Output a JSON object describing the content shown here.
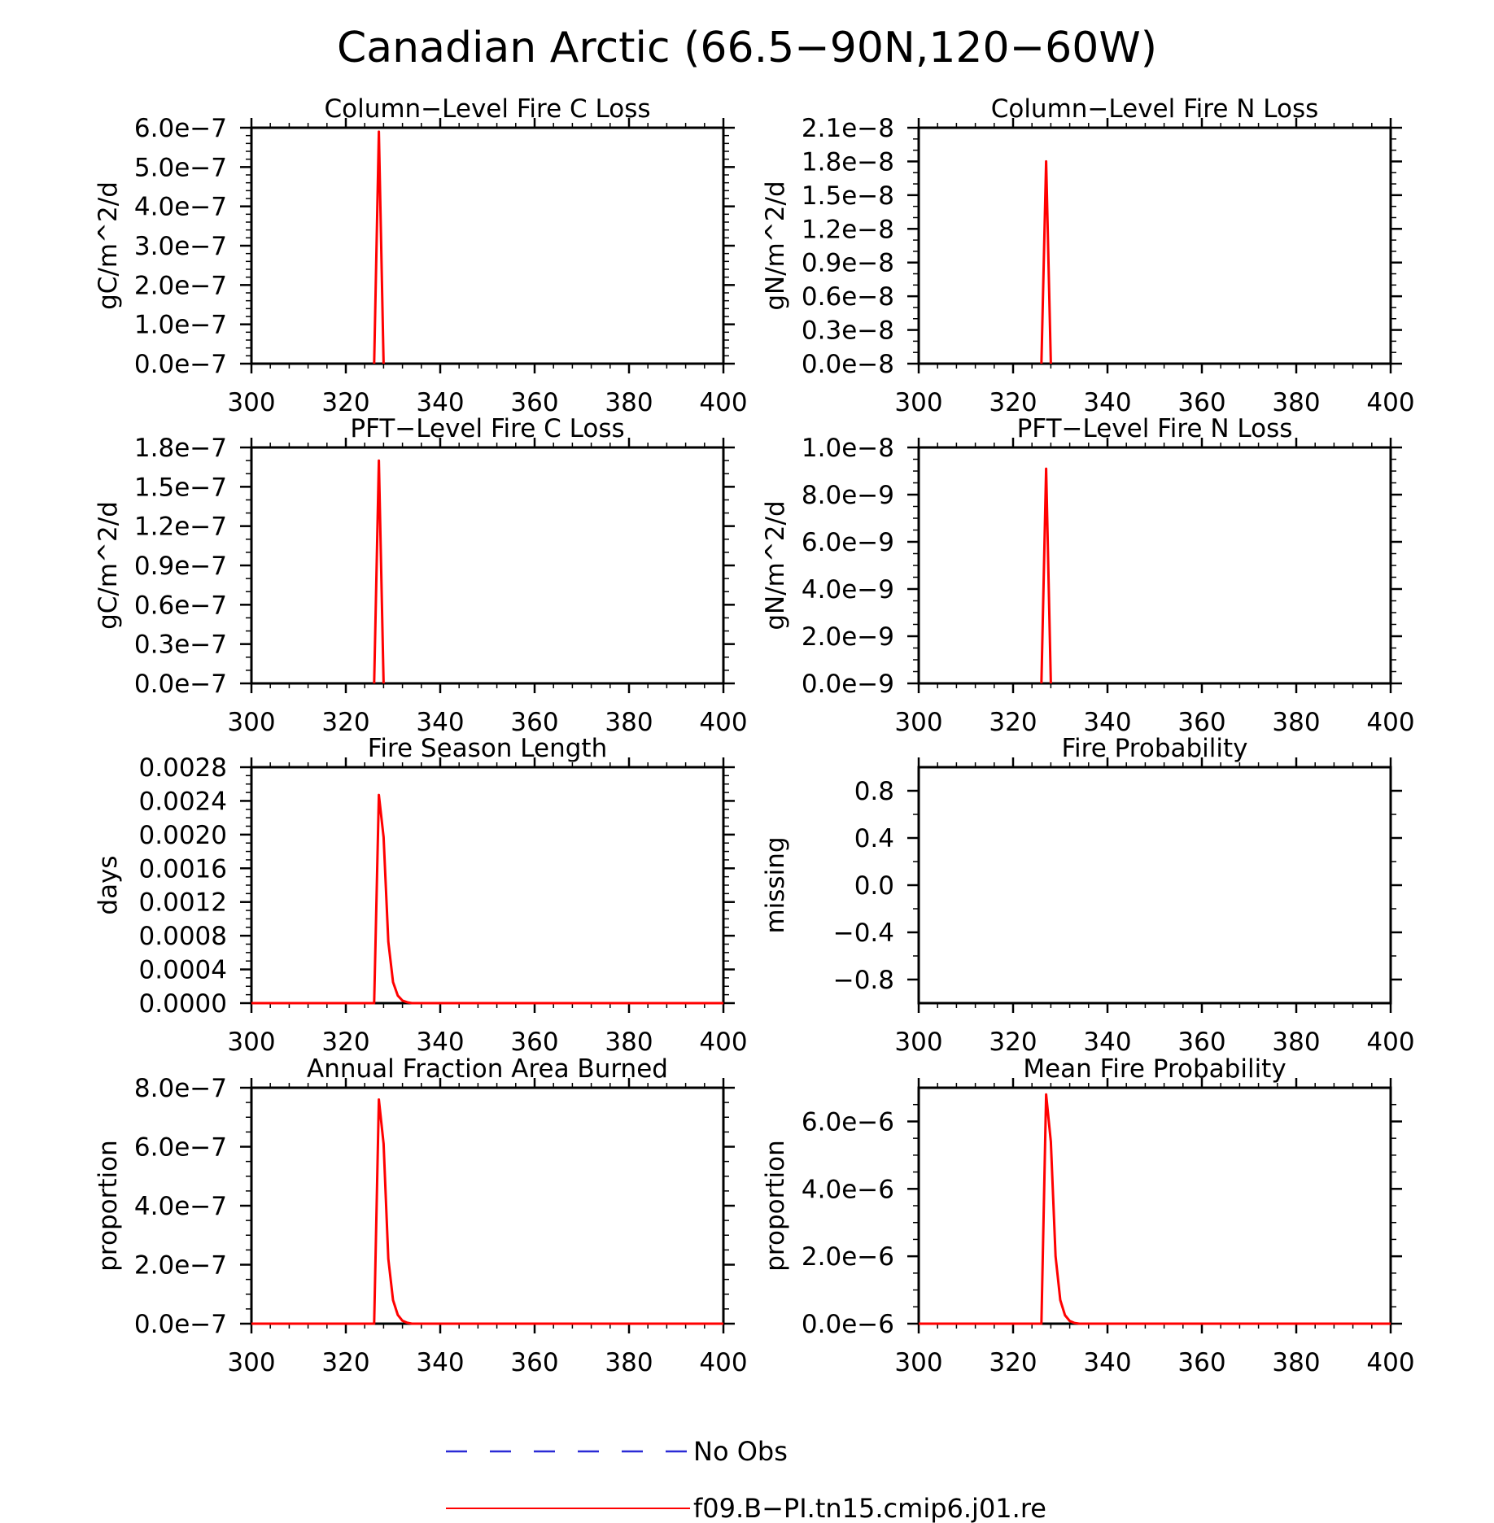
{
  "figure": {
    "title": "Canadian Arctic (66.5−90N,120−60W)"
  },
  "legend": {
    "entries": [
      {
        "label": "No Obs",
        "color": "#2a2ad6",
        "style": "dashed"
      },
      {
        "label": "f09.B−PI.tn15.cmip6.j01.re",
        "color": "#ff0000",
        "style": "solid"
      }
    ]
  },
  "chart_data": [
    {
      "type": "line",
      "title": "Column−Level Fire C Loss",
      "ylabel": "gC/m^2/d",
      "xlim": [
        300,
        400
      ],
      "xticks": [
        300,
        320,
        340,
        360,
        380,
        400
      ],
      "xtick_labels": [
        "300",
        "320",
        "340",
        "360",
        "380",
        "400"
      ],
      "ylim": [
        0,
        6e-07
      ],
      "yticks": [
        0,
        1e-07,
        2e-07,
        3e-07,
        4e-07,
        5e-07,
        6e-07
      ],
      "ytick_labels": [
        "0.0e−7",
        "1.0e−7",
        "2.0e−7",
        "3.0e−7",
        "4.0e−7",
        "5.0e−7",
        "6.0e−7"
      ],
      "yminor": 4,
      "series": [
        {
          "color": "#ff0000",
          "x": [
            326,
            327,
            328
          ],
          "y": [
            0,
            5.9e-07,
            0
          ]
        }
      ]
    },
    {
      "type": "line",
      "title": "Column−Level Fire N Loss",
      "ylabel": "gN/m^2/d",
      "xlim": [
        300,
        400
      ],
      "xticks": [
        300,
        320,
        340,
        360,
        380,
        400
      ],
      "xtick_labels": [
        "300",
        "320",
        "340",
        "360",
        "380",
        "400"
      ],
      "ylim": [
        0,
        2.1e-08
      ],
      "yticks": [
        0,
        3e-09,
        6e-09,
        9e-09,
        1.2e-08,
        1.5e-08,
        1.8e-08,
        2.1e-08
      ],
      "ytick_labels": [
        "0.0e−8",
        "0.3e−8",
        "0.6e−8",
        "0.9e−8",
        "1.2e−8",
        "1.5e−8",
        "1.8e−8",
        "2.1e−8"
      ],
      "yminor": 2,
      "series": [
        {
          "color": "#ff0000",
          "x": [
            326,
            327,
            328
          ],
          "y": [
            0,
            1.8e-08,
            0
          ]
        }
      ]
    },
    {
      "type": "line",
      "title": "PFT−Level Fire C Loss",
      "ylabel": "gC/m^2/d",
      "xlim": [
        300,
        400
      ],
      "xticks": [
        300,
        320,
        340,
        360,
        380,
        400
      ],
      "xtick_labels": [
        "300",
        "320",
        "340",
        "360",
        "380",
        "400"
      ],
      "ylim": [
        0,
        1.8e-07
      ],
      "yticks": [
        0,
        3e-08,
        6e-08,
        9e-08,
        1.2e-07,
        1.5e-07,
        1.8e-07
      ],
      "ytick_labels": [
        "0.0e−7",
        "0.3e−7",
        "0.6e−7",
        "0.9e−7",
        "1.2e−7",
        "1.5e−7",
        "1.8e−7"
      ],
      "yminor": 2,
      "series": [
        {
          "color": "#ff0000",
          "x": [
            326,
            327,
            328
          ],
          "y": [
            0,
            1.7e-07,
            0
          ]
        }
      ]
    },
    {
      "type": "line",
      "title": "PFT−Level Fire N Loss",
      "ylabel": "gN/m^2/d",
      "xlim": [
        300,
        400
      ],
      "xticks": [
        300,
        320,
        340,
        360,
        380,
        400
      ],
      "xtick_labels": [
        "300",
        "320",
        "340",
        "360",
        "380",
        "400"
      ],
      "ylim": [
        0,
        1e-08
      ],
      "yticks": [
        0,
        2e-09,
        4e-09,
        6e-09,
        8e-09,
        1e-08
      ],
      "ytick_labels": [
        "0.0e−9",
        "2.0e−9",
        "4.0e−9",
        "6.0e−9",
        "8.0e−9",
        "1.0e−8"
      ],
      "yminor": 3,
      "series": [
        {
          "color": "#ff0000",
          "x": [
            326,
            327,
            328
          ],
          "y": [
            0,
            9.1e-09,
            0
          ]
        }
      ]
    },
    {
      "type": "line",
      "title": "Fire Season Length",
      "ylabel": "days",
      "xlim": [
        300,
        400
      ],
      "xticks": [
        300,
        320,
        340,
        360,
        380,
        400
      ],
      "xtick_labels": [
        "300",
        "320",
        "340",
        "360",
        "380",
        "400"
      ],
      "ylim": [
        0,
        0.0028
      ],
      "yticks": [
        0,
        0.0004,
        0.0008,
        0.0012,
        0.0016,
        0.002,
        0.0024,
        0.0028
      ],
      "ytick_labels": [
        "0.0000",
        "0.0004",
        "0.0008",
        "0.0012",
        "0.0016",
        "0.0020",
        "0.0024",
        "0.0028"
      ],
      "yminor": 3,
      "series": [
        {
          "color": "#ff0000",
          "x": [
            300,
            326,
            327,
            328,
            329,
            330,
            331,
            332,
            333,
            334,
            335,
            400
          ],
          "y": [
            0,
            0,
            0.00247,
            0.00197,
            0.00073,
            0.00025,
            9e-05,
            3e-05,
            1e-05,
            0,
            0,
            0
          ]
        }
      ]
    },
    {
      "type": "line",
      "title": "Fire Probability",
      "ylabel": "missing",
      "xlim": [
        300,
        400
      ],
      "xticks": [
        300,
        320,
        340,
        360,
        380,
        400
      ],
      "xtick_labels": [
        "300",
        "320",
        "340",
        "360",
        "380",
        "400"
      ],
      "ylim": [
        -1.0,
        1.0
      ],
      "yticks": [
        -0.8,
        -0.4,
        0.0,
        0.4,
        0.8
      ],
      "ytick_labels": [
        "−0.8",
        "−0.4",
        "0.0",
        "0.4",
        "0.8"
      ],
      "yminor": 1,
      "series": []
    },
    {
      "type": "line",
      "title": "Annual Fraction Area Burned",
      "ylabel": "proportion",
      "xlim": [
        300,
        400
      ],
      "xticks": [
        300,
        320,
        340,
        360,
        380,
        400
      ],
      "xtick_labels": [
        "300",
        "320",
        "340",
        "360",
        "380",
        "400"
      ],
      "ylim": [
        0,
        8e-07
      ],
      "yticks": [
        0,
        2e-07,
        4e-07,
        6e-07,
        8e-07
      ],
      "ytick_labels": [
        "0.0e−7",
        "2.0e−7",
        "4.0e−7",
        "6.0e−7",
        "8.0e−7"
      ],
      "yminor": 3,
      "series": [
        {
          "color": "#ff0000",
          "x": [
            300,
            326,
            327,
            328,
            329,
            330,
            331,
            332,
            333,
            334,
            335,
            400
          ],
          "y": [
            0,
            0,
            7.6e-07,
            6.1e-07,
            2.2e-07,
            8e-08,
            3e-08,
            1e-08,
            3e-09,
            0,
            0,
            0
          ]
        }
      ]
    },
    {
      "type": "line",
      "title": "Mean Fire Probability",
      "ylabel": "proportion",
      "xlim": [
        300,
        400
      ],
      "xticks": [
        300,
        320,
        340,
        360,
        380,
        400
      ],
      "xtick_labels": [
        "300",
        "320",
        "340",
        "360",
        "380",
        "400"
      ],
      "ylim": [
        0,
        7e-06
      ],
      "yticks": [
        0,
        2e-06,
        4e-06,
        6e-06
      ],
      "ytick_labels": [
        "0.0e−6",
        "2.0e−6",
        "4.0e−6",
        "6.0e−6"
      ],
      "yminor": 3,
      "series": [
        {
          "color": "#ff0000",
          "x": [
            300,
            326,
            327,
            328,
            329,
            330,
            331,
            332,
            333,
            334,
            335,
            400
          ],
          "y": [
            0,
            0,
            6.8e-06,
            5.4e-06,
            2e-06,
            7e-07,
            2.5e-07,
            8e-08,
            2e-08,
            0,
            0,
            0
          ]
        }
      ]
    }
  ]
}
